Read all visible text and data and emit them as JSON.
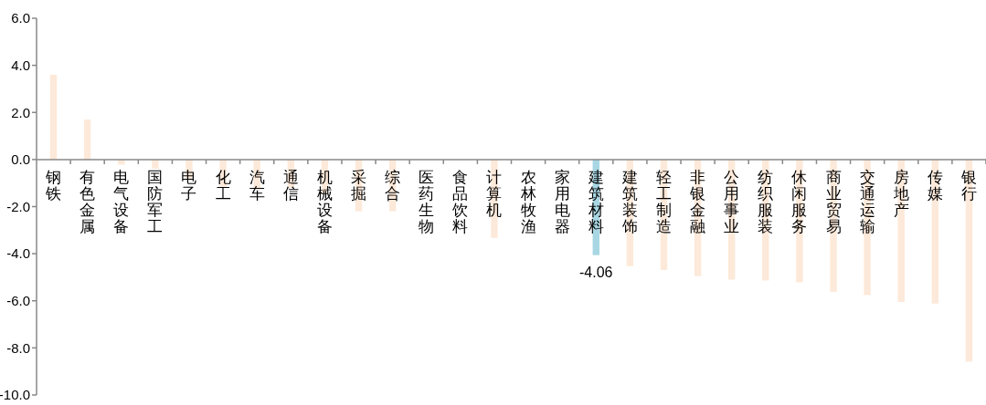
{
  "chart_data": {
    "type": "bar",
    "categories": [
      "钢铁",
      "有色金属",
      "电气设备",
      "国防军工",
      "电子",
      "化工",
      "汽车",
      "通信",
      "机械设备",
      "采掘",
      "综合",
      "医药生物",
      "食品饮料",
      "计算机",
      "农林牧渔",
      "家用电器",
      "建筑材料",
      "建筑装饰",
      "轻工制造",
      "非银金融",
      "公用事业",
      "纺织服装",
      "休闲服务",
      "商业贸易",
      "交通运输",
      "房地产",
      "传媒",
      "银行"
    ],
    "values": [
      3.6,
      1.7,
      -0.22,
      -0.39,
      -0.85,
      -1.16,
      -1.25,
      -1.2,
      -1.45,
      -2.2,
      -2.2,
      null,
      null,
      -3.33,
      null,
      null,
      -4.06,
      -4.53,
      -4.69,
      -4.95,
      -5.1,
      -5.14,
      -5.22,
      -5.62,
      -5.76,
      -6.05,
      -6.12,
      -8.59
    ],
    "colors": [
      "#fde9d9",
      "#fde9d9",
      "#fde9d9",
      "#fde9d9",
      "#fde9d9",
      "#fde9d9",
      "#fde9d9",
      "#fde9d9",
      "#fde9d9",
      "#fde9d9",
      "#fde9d9",
      "#fde9d9",
      "#fde9d9",
      "#fde9d9",
      "#fde9d9",
      "#fde9d9",
      "#a8d6e3",
      "#fde9d9",
      "#fde9d9",
      "#fde9d9",
      "#fde9d9",
      "#fde9d9",
      "#fde9d9",
      "#fde9d9",
      "#fde9d9",
      "#fde9d9",
      "#fde9d9",
      "#fde9d9"
    ],
    "value_labels": [
      null,
      null,
      null,
      null,
      null,
      null,
      null,
      null,
      null,
      null,
      null,
      null,
      null,
      null,
      null,
      null,
      "-4.06",
      null,
      null,
      null,
      null,
      null,
      null,
      null,
      null,
      null,
      null,
      null
    ],
    "ylim": [
      -10,
      6
    ],
    "yticks": [
      {
        "value": -10,
        "label": "-10.0"
      },
      {
        "value": -8,
        "label": "-8.0"
      },
      {
        "value": -6,
        "label": "-6.0"
      },
      {
        "value": -4,
        "label": "-4.0"
      },
      {
        "value": -2,
        "label": "-2.0"
      },
      {
        "value": 0,
        "label": "0.0"
      },
      {
        "value": 2,
        "label": "2.0"
      },
      {
        "value": 4,
        "label": "4.0"
      },
      {
        "value": 6,
        "label": "6.0"
      }
    ],
    "legend": false
  }
}
